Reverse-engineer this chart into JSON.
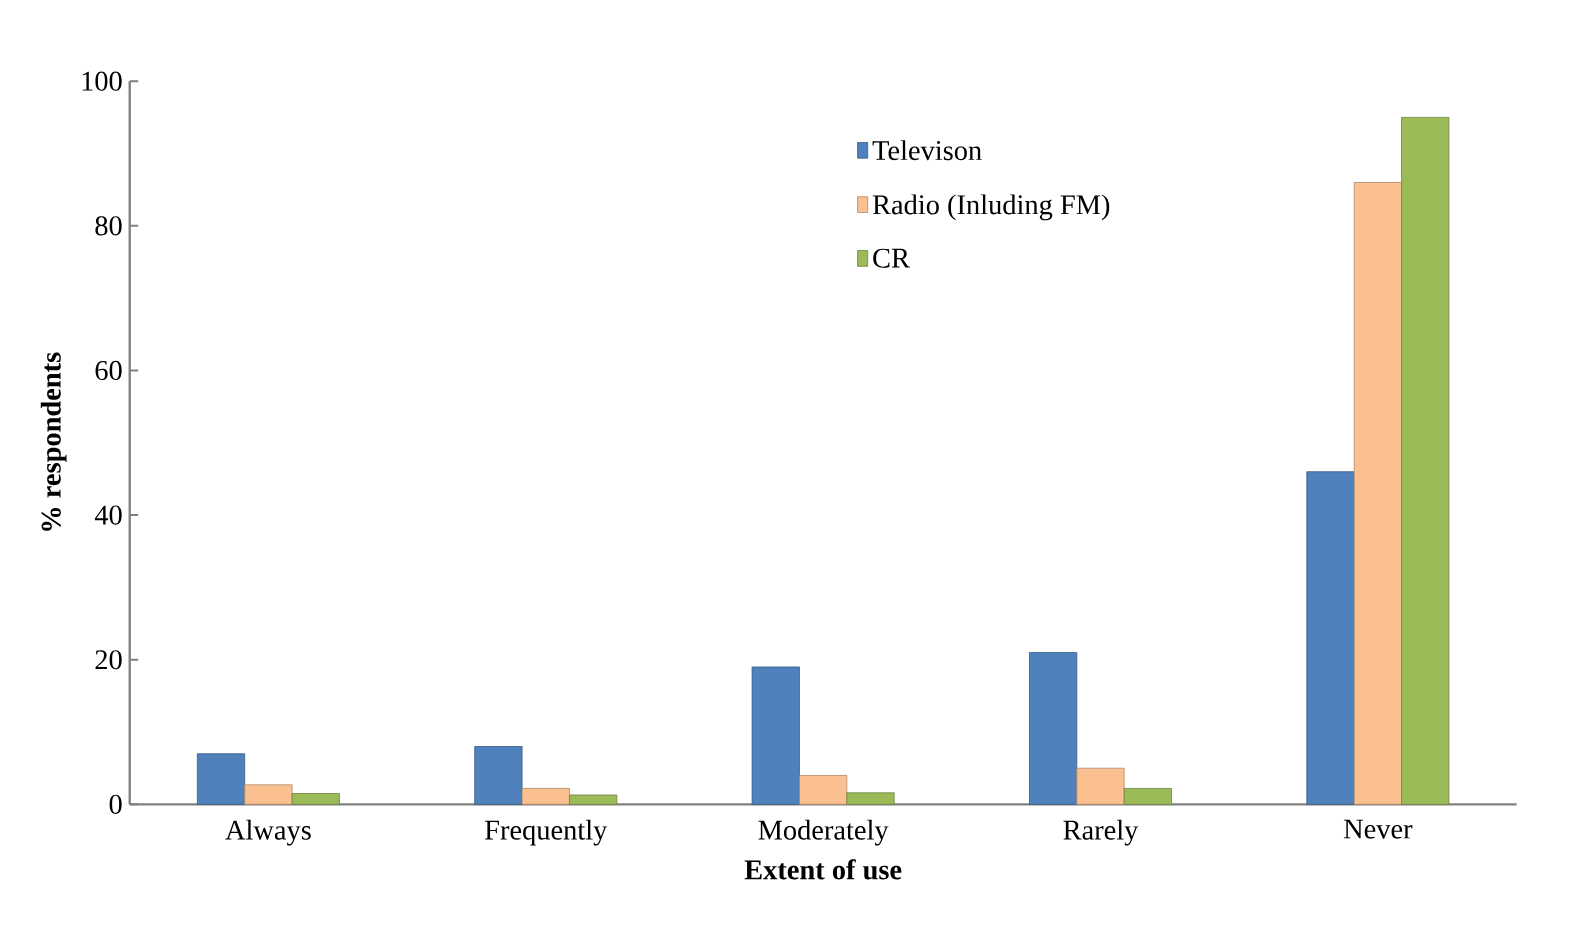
{
  "chart_data": {
    "type": "bar",
    "xlabel": "Extent of use",
    "ylabel": "% respondents",
    "categories": [
      "Always",
      "Frequently",
      "Moderately",
      "Rarely",
      "Never"
    ],
    "series": [
      {
        "name": "Televison",
        "color": "#4f81bd",
        "values": [
          7,
          8,
          19,
          21,
          46
        ]
      },
      {
        "name": "Radio (Inluding FM)",
        "color": "#fac090",
        "values": [
          2.7,
          2.2,
          4,
          5,
          86
        ]
      },
      {
        "name": "CR",
        "color": "#9bbb59",
        "values": [
          1.5,
          1.3,
          1.6,
          2.2,
          95
        ]
      }
    ],
    "ylim": [
      0,
      100
    ],
    "yticks": [
      0,
      20,
      40,
      60,
      80,
      100
    ],
    "grid": false,
    "legend": "top right"
  }
}
